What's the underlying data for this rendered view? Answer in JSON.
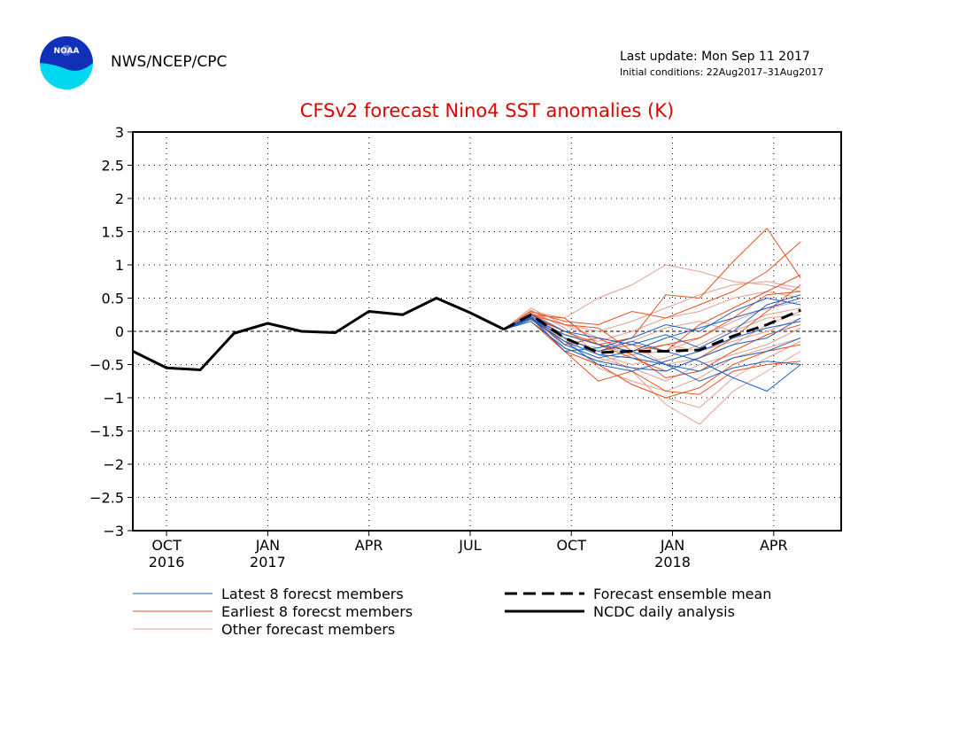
{
  "header": {
    "agency": "NWS/NCEP/CPC",
    "last_update": "Last update: Mon Sep 11 2017",
    "initial_conditions": "Initial conditions: 22Aug2017–31Aug2017",
    "logo_text": "NOAA"
  },
  "colors": {
    "latest": "#2060c0",
    "earliest": "#e8501c",
    "other": "#e2a090",
    "mean": "#000000",
    "analysis": "#000000",
    "title": "#e00000"
  },
  "chart_data": {
    "type": "line",
    "title": "CFSv2 forecast Nino4 SST anomalies (K)",
    "ylim": [
      -3,
      3
    ],
    "yticks": [
      -3,
      -2.5,
      -2,
      -1.5,
      -1,
      -0.5,
      0,
      0.5,
      1,
      1.5,
      2,
      2.5,
      3
    ],
    "xlim": [
      0,
      21
    ],
    "xticks": [
      {
        "x": 1,
        "label": "OCT",
        "year": "2016"
      },
      {
        "x": 4,
        "label": "JAN",
        "year": "2017"
      },
      {
        "x": 7,
        "label": "APR",
        "year": ""
      },
      {
        "x": 10,
        "label": "JUL",
        "year": ""
      },
      {
        "x": 13,
        "label": "OCT",
        "year": ""
      },
      {
        "x": 16,
        "label": "JAN",
        "year": "2018"
      },
      {
        "x": 19,
        "label": "APR",
        "year": ""
      }
    ],
    "grid": true,
    "legend": [
      {
        "label": "Latest 8 forecst members",
        "style": "latest"
      },
      {
        "label": "Earliest 8 forecst members",
        "style": "earliest"
      },
      {
        "label": "Other forecast members",
        "style": "other"
      },
      {
        "label": "Forecast ensemble mean",
        "style": "mean"
      },
      {
        "label": "NCDC daily analysis",
        "style": "analysis"
      }
    ],
    "forecast_x": [
      11,
      11.8,
      12.8,
      13.8,
      14.8,
      15.8,
      16.8,
      17.8,
      18.8,
      19.8
    ],
    "analysis": {
      "x": [
        0,
        1,
        2,
        3,
        4,
        5,
        6,
        7,
        8,
        9,
        10,
        11
      ],
      "y": [
        -0.3,
        -0.55,
        -0.58,
        -0.03,
        0.12,
        0.0,
        -0.02,
        0.3,
        0.25,
        0.5,
        0.28,
        0.03
      ]
    },
    "ensemble_mean": {
      "y": [
        0.03,
        0.25,
        -0.1,
        -0.32,
        -0.3,
        -0.3,
        -0.28,
        -0.07,
        0.1,
        0.32
      ]
    },
    "members_latest": [
      [
        0.03,
        0.18,
        -0.15,
        -0.35,
        -0.4,
        -0.5,
        -0.6,
        -0.4,
        -0.3,
        -0.1
      ],
      [
        0.03,
        0.2,
        -0.05,
        -0.2,
        -0.3,
        -0.5,
        -0.75,
        -0.55,
        -0.45,
        -0.5
      ],
      [
        0.03,
        0.22,
        -0.2,
        -0.4,
        -0.3,
        -0.1,
        0.05,
        0.2,
        0.35,
        0.5
      ],
      [
        0.03,
        0.15,
        -0.25,
        -0.45,
        -0.55,
        -0.6,
        -0.4,
        -0.2,
        -0.1,
        0.2
      ],
      [
        0.03,
        0.25,
        0.0,
        -0.1,
        -0.2,
        -0.05,
        -0.25,
        0.0,
        0.4,
        0.55
      ],
      [
        0.03,
        0.2,
        -0.1,
        -0.3,
        -0.15,
        -0.3,
        -0.45,
        -0.7,
        -0.9,
        -0.5
      ],
      [
        0.03,
        0.18,
        -0.15,
        -0.5,
        -0.6,
        -0.45,
        -0.3,
        -0.1,
        0.05,
        0.15
      ],
      [
        0.03,
        0.22,
        -0.3,
        -0.25,
        -0.1,
        0.1,
        0.0,
        0.3,
        0.5,
        0.4
      ]
    ],
    "members_earliest": [
      [
        0.03,
        0.25,
        0.2,
        -0.2,
        -0.1,
        0.55,
        0.5,
        1.05,
        1.55,
        0.8
      ],
      [
        0.03,
        0.2,
        -0.3,
        -0.75,
        -0.6,
        -0.9,
        -0.95,
        -0.6,
        -0.5,
        -0.45
      ],
      [
        0.03,
        0.3,
        0.15,
        0.1,
        0.3,
        0.2,
        0.4,
        0.6,
        0.9,
        1.35
      ],
      [
        0.03,
        0.15,
        -0.3,
        -0.5,
        -0.8,
        -1.0,
        -0.85,
        -0.5,
        -0.3,
        -0.2
      ],
      [
        0.03,
        0.22,
        0.0,
        -0.2,
        -0.4,
        -0.6,
        -0.4,
        -0.1,
        0.3,
        0.7
      ],
      [
        0.03,
        0.18,
        -0.1,
        -0.3,
        -0.2,
        -0.3,
        0.1,
        0.35,
        0.6,
        0.85
      ],
      [
        0.03,
        0.25,
        0.1,
        0.05,
        -0.3,
        -0.2,
        -0.1,
        0.2,
        0.55,
        0.6
      ],
      [
        0.03,
        0.2,
        -0.2,
        -0.1,
        -0.35,
        -0.7,
        -0.6,
        -0.3,
        -0.05,
        0.1
      ]
    ],
    "members_other": [
      [
        0.03,
        0.3,
        0.2,
        0.5,
        0.7,
        1.0,
        0.9,
        0.75,
        0.7,
        0.6
      ],
      [
        0.03,
        0.25,
        -0.1,
        -0.3,
        -0.6,
        -1.1,
        -1.4,
        -0.9,
        -0.6,
        -0.3
      ],
      [
        0.03,
        0.2,
        -0.3,
        -0.5,
        -0.8,
        -1.0,
        -1.15,
        -0.7,
        -0.4,
        -0.15
      ],
      [
        0.03,
        0.35,
        0.1,
        -0.1,
        -0.2,
        -0.5,
        -0.4,
        -0.2,
        0.1,
        0.3
      ],
      [
        0.03,
        0.28,
        0.0,
        -0.2,
        -0.35,
        -0.3,
        -0.1,
        0.15,
        0.35,
        0.45
      ],
      [
        0.03,
        0.3,
        -0.2,
        -0.4,
        -0.55,
        -0.75,
        -0.5,
        -0.35,
        -0.2,
        0.05
      ],
      [
        0.03,
        0.22,
        -0.05,
        -0.15,
        0.0,
        0.2,
        0.3,
        0.5,
        0.6,
        0.5
      ],
      [
        0.03,
        0.26,
        -0.25,
        -0.45,
        -0.35,
        -0.2,
        -0.3,
        -0.15,
        0.0,
        0.2
      ],
      [
        0.03,
        0.32,
        0.05,
        -0.35,
        -0.5,
        -0.4,
        -0.2,
        0.05,
        0.25,
        0.35
      ],
      [
        0.03,
        0.24,
        -0.15,
        -0.25,
        -0.15,
        0.05,
        0.15,
        0.0,
        0.2,
        0.25
      ],
      [
        0.03,
        0.3,
        -0.1,
        -0.55,
        -0.75,
        -0.9,
        -0.7,
        -0.4,
        -0.25,
        -0.1
      ],
      [
        0.03,
        0.27,
        0.1,
        0.0,
        0.15,
        0.35,
        0.55,
        0.7,
        0.75,
        0.65
      ]
    ]
  }
}
